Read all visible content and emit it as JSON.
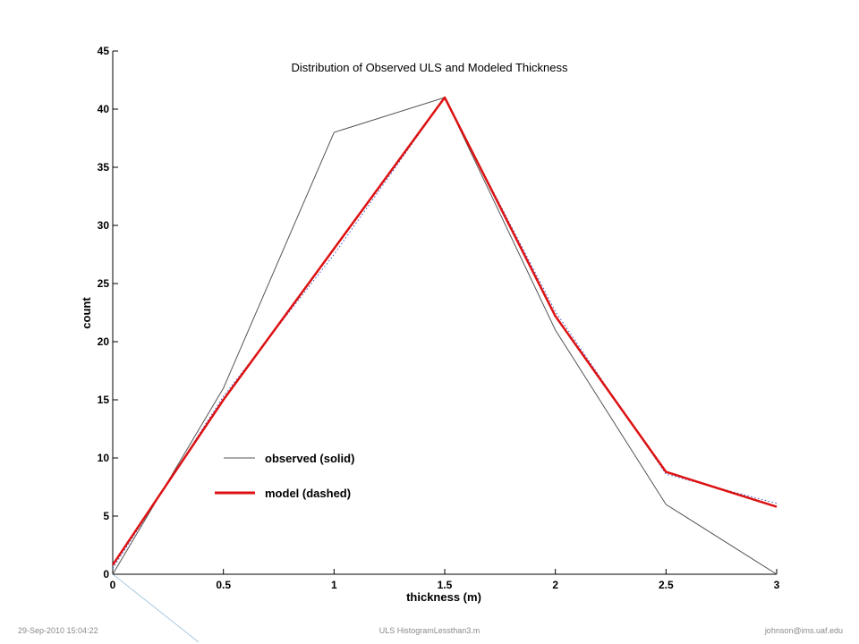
{
  "chart_data": {
    "type": "line",
    "title": "Distribution of Observed ULS and Modeled Thickness",
    "xlabel": "thickness (m)",
    "ylabel": "count",
    "xlim": [
      0,
      3
    ],
    "ylim": [
      0,
      45
    ],
    "xticks": [
      0,
      0.5,
      1,
      1.5,
      2,
      2.5,
      3
    ],
    "xtick_labels": [
      "0",
      "0.5",
      "1",
      "1.5",
      "2",
      "2.5",
      "3"
    ],
    "yticks": [
      0,
      5,
      10,
      15,
      20,
      25,
      30,
      35,
      40,
      45
    ],
    "ytick_labels": [
      "0",
      "5",
      "10",
      "15",
      "20",
      "25",
      "30",
      "35",
      "40",
      "45"
    ],
    "grid": false,
    "legend_position": "lower-left",
    "series": [
      {
        "name": "observed (solid)",
        "color": "#555555",
        "x": [
          0,
          0.5,
          1,
          1.5,
          2,
          2.5,
          3
        ],
        "y": [
          0,
          16,
          38,
          41,
          21,
          6,
          0
        ]
      },
      {
        "name": "model (dashed)",
        "color": "#dd1111",
        "x": [
          0,
          0.5,
          1,
          1.5,
          2,
          2.5,
          3
        ],
        "y": [
          0.8,
          15,
          28,
          41,
          22.2,
          8.8,
          5.8
        ]
      }
    ],
    "series_dotted": {
      "color": "#3355cc",
      "x": [
        0,
        0.5,
        1,
        1.5,
        2,
        2.5,
        3
      ],
      "y": [
        0.5,
        15.3,
        27.5,
        41,
        22.6,
        8.6,
        6.1
      ]
    }
  },
  "footer": {
    "left": "29-Sep-2010 15:04:22",
    "center": "ULS HistogramLessthan3.m",
    "right": "johnson@ims.uaf.edu"
  }
}
